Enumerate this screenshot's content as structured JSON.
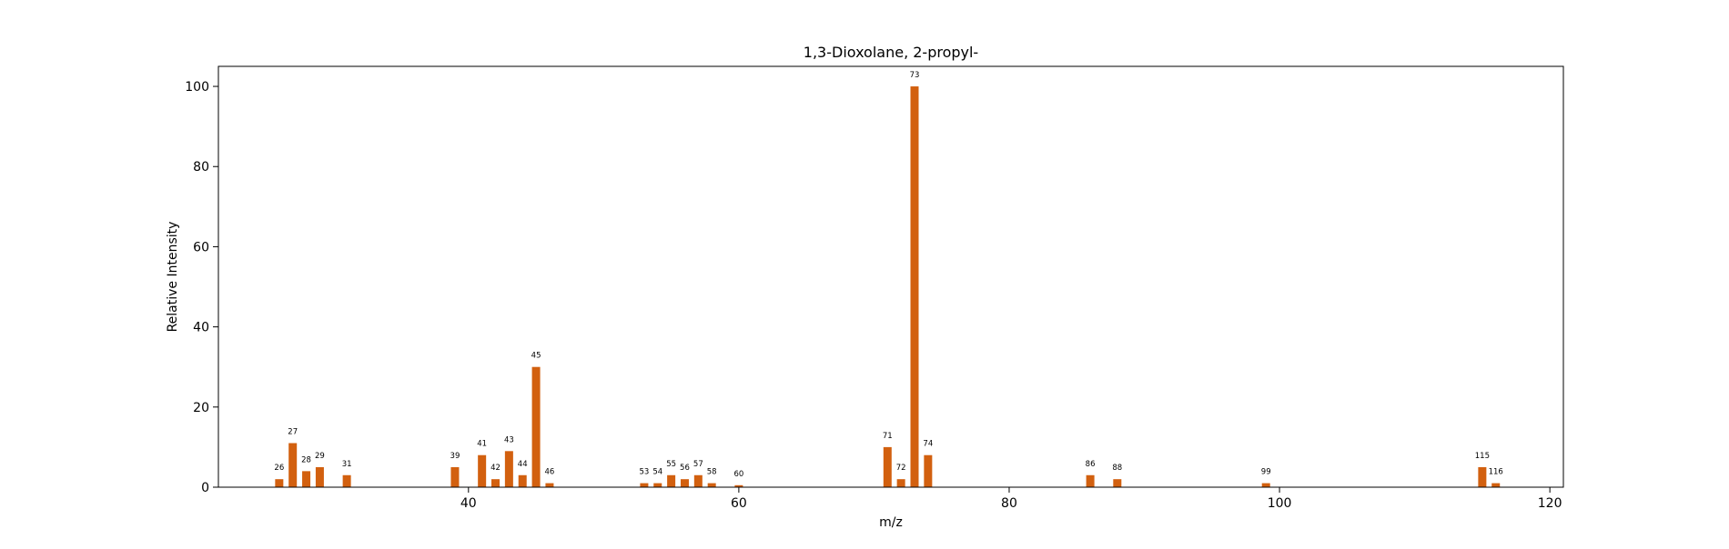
{
  "chart_data": {
    "type": "bar",
    "title": "1,3-Dioxolane, 2-propyl-",
    "xlabel": "m/z",
    "ylabel": "Relative Intensity",
    "xlim": [
      21.5,
      121.0
    ],
    "ylim": [
      0,
      105
    ],
    "xticks": [
      40,
      60,
      80,
      100,
      120
    ],
    "yticks": [
      0,
      20,
      40,
      60,
      80,
      100
    ],
    "grid": false,
    "bar_color": "#d2600f",
    "x": [
      26,
      27,
      28,
      29,
      31,
      39,
      41,
      42,
      43,
      44,
      45,
      46,
      53,
      54,
      55,
      56,
      57,
      58,
      60,
      71,
      72,
      73,
      74,
      86,
      88,
      99,
      115,
      116
    ],
    "values": [
      2,
      11,
      4,
      5,
      3,
      5,
      8,
      2,
      9,
      3,
      30,
      1,
      1,
      1,
      3,
      2,
      3,
      1,
      0.5,
      10,
      2,
      100,
      8,
      3,
      2,
      1,
      5,
      1
    ],
    "peak_labels": [
      "26",
      "27",
      "28",
      "29",
      "31",
      "39",
      "41",
      "42",
      "43",
      "44",
      "45",
      "46",
      "53",
      "54",
      "55",
      "56",
      "57",
      "58",
      "60",
      "71",
      "72",
      "73",
      "74",
      "86",
      "88",
      "99",
      "115",
      "116"
    ]
  }
}
